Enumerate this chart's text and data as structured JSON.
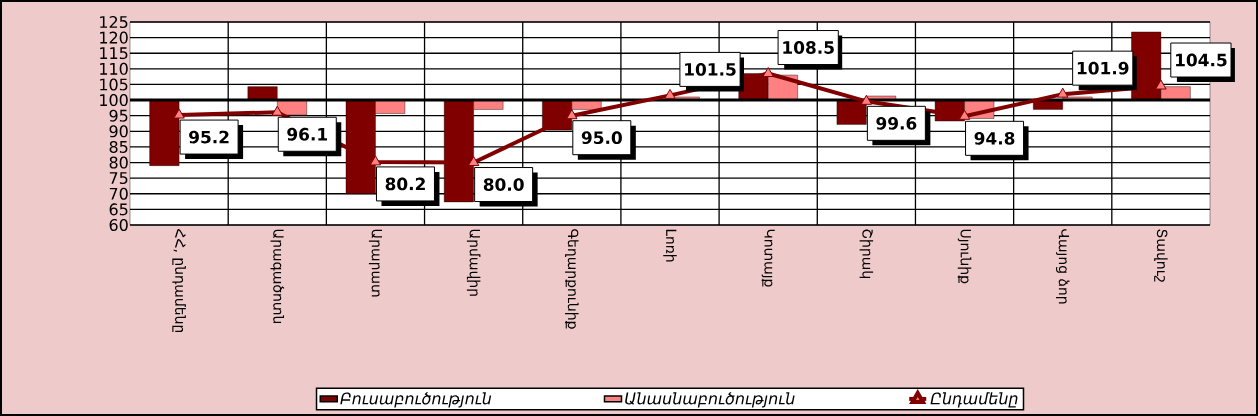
{
  "chart_data": {
    "type": "bar",
    "categories": [
      "ՀՀ, ընդամենը",
      "Արագածոտն",
      "Արարատ",
      "Արմավիր",
      "Գեղարքունիք",
      "Լոռի",
      "Կոտայք",
      "Շիրակ",
      "Սյունիք",
      "Վայոց ձոր",
      "Տավուշ"
    ],
    "series": [
      {
        "name": "Բուսաբուծություն",
        "color": "#800000",
        "base": [
          100,
          100,
          100,
          100,
          100,
          null,
          100,
          100,
          100,
          100,
          100
        ],
        "values": [
          -21,
          4.3,
          -30,
          -32.6,
          -9.6,
          null,
          8.5,
          -7.8,
          -6.7,
          -3,
          21.8
        ]
      },
      {
        "name": "Անասնաբուծություն",
        "color": "#ff8080",
        "base": [
          null,
          100,
          100,
          100,
          100,
          100,
          100,
          100,
          100,
          100,
          100
        ],
        "values": [
          null,
          -4.8,
          -4.3,
          -3,
          -3,
          1,
          8,
          1.3,
          -5.9,
          1,
          4.3
        ]
      },
      {
        "name": "Ընդամենը",
        "type": "line",
        "color": "#800000",
        "marker": "triangle",
        "values": [
          95.2,
          96.1,
          80.2,
          80.0,
          95.0,
          101.5,
          108.5,
          99.6,
          94.8,
          101.9,
          104.5
        ],
        "value_labels": [
          "95.2",
          "96.1",
          "80.2",
          "80.0",
          "95.0",
          "101.5",
          "108.5",
          "99.6",
          "94.8",
          "101.9",
          "104.5"
        ]
      }
    ],
    "ylim": [
      60,
      125
    ],
    "yticks": [
      60,
      65,
      70,
      75,
      80,
      85,
      90,
      95,
      100,
      105,
      110,
      115,
      120,
      125
    ],
    "ref_lines": [
      {
        "axis": "y",
        "value": 100,
        "color": "#000000"
      }
    ],
    "grid": true,
    "legend": "bottom"
  }
}
